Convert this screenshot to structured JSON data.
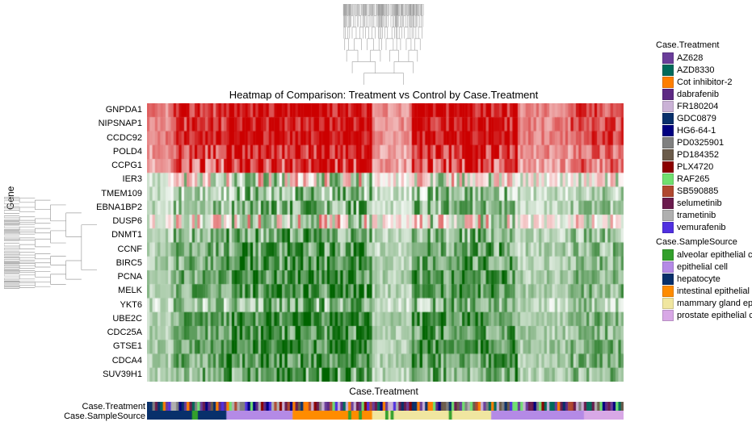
{
  "title": "Heatmap of Comparison: Treatment vs Control by Case.Treatment",
  "y_axis_label": "Gene",
  "x_axis_label": "Case.Treatment",
  "annotation_labels": [
    "Case.Treatment",
    "Case.SampleSource"
  ],
  "genes": [
    "GNPDA1",
    "NIPSNAP1",
    "CCDC92",
    "POLD4",
    "CCPG1",
    "IER3",
    "TMEM109",
    "EBNA1BP2",
    "DUSP6",
    "DNMT1",
    "CCNF",
    "BIRC5",
    "PCNA",
    "MELK",
    "YKT6",
    "UBE2C",
    "CDC25A",
    "GTSE1",
    "CDCA4",
    "SUV39H1"
  ],
  "heatmap": {
    "type": "heatmap",
    "n_rows": 20,
    "n_cols": 180,
    "color_low": "#006400",
    "color_mid": "#ffffff",
    "color_high": "#cc0000",
    "background_color": "#ffffff",
    "grid_color": "#ffffff",
    "row_means": [
      0.8,
      0.78,
      0.82,
      0.7,
      0.62,
      -0.05,
      -0.35,
      -0.4,
      -0.05,
      -0.45,
      -0.5,
      -0.52,
      -0.55,
      -0.55,
      -0.4,
      -0.58,
      -0.55,
      -0.58,
      -0.55,
      -0.5
    ],
    "row_noise": [
      0.32,
      0.3,
      0.3,
      0.35,
      0.4,
      0.55,
      0.35,
      0.32,
      0.55,
      0.35,
      0.35,
      0.32,
      0.32,
      0.32,
      0.35,
      0.3,
      0.32,
      0.3,
      0.32,
      0.35
    ],
    "col_intensity_blocks": [
      {
        "start": 0,
        "end": 10,
        "mult": 0.6
      },
      {
        "start": 10,
        "end": 30,
        "mult": 1.0
      },
      {
        "start": 30,
        "end": 85,
        "mult": 1.3
      },
      {
        "start": 85,
        "end": 100,
        "mult": 0.55
      },
      {
        "start": 100,
        "end": 140,
        "mult": 1.2
      },
      {
        "start": 140,
        "end": 160,
        "mult": 0.6
      },
      {
        "start": 160,
        "end": 180,
        "mult": 0.9
      }
    ]
  },
  "dendrogram_color": "#9f9f9f",
  "dendrogram_stroke_width": 0.6,
  "legends": {
    "treatment": {
      "title": "Case.Treatment",
      "items": [
        {
          "label": "AZ628",
          "color": "#6a3d9a"
        },
        {
          "label": "AZD8330",
          "color": "#006a5a"
        },
        {
          "label": "Cot inhibitor-2",
          "color": "#ff7f00"
        },
        {
          "label": "dabrafenib",
          "color": "#5e2a84"
        },
        {
          "label": "FR180204",
          "color": "#cab2d6"
        },
        {
          "label": "GDC0879",
          "color": "#08306b"
        },
        {
          "label": "HG6-64-1",
          "color": "#000080"
        },
        {
          "label": "PD0325901",
          "color": "#808080"
        },
        {
          "label": "PD184352",
          "color": "#6b5b4a"
        },
        {
          "label": "PLX4720",
          "color": "#8b0000"
        },
        {
          "label": "RAF265",
          "color": "#70e070"
        },
        {
          "label": "SB590885",
          "color": "#b04830"
        },
        {
          "label": "selumetinib",
          "color": "#6a1b4d"
        },
        {
          "label": "trametinib",
          "color": "#b0b0b0"
        },
        {
          "label": "vemurafenib",
          "color": "#5030e0"
        }
      ]
    },
    "samplesource": {
      "title": "Case.SampleSource",
      "items": [
        {
          "label": "alveolar epithelial cell",
          "color": "#33a02c"
        },
        {
          "label": "epithelial cell",
          "color": "#b48ae6"
        },
        {
          "label": "hepatocyte",
          "color": "#08306b"
        },
        {
          "label": "intestinal epithelial cell",
          "color": "#ff8c00"
        },
        {
          "label": "mammary gland epithelial",
          "color": "#f0e6a0"
        },
        {
          "label": "prostate epithelial cell",
          "color": "#d8a8e6"
        }
      ]
    }
  },
  "annotation_tracks": {
    "treatment_cols": 180,
    "samplesource_blocks": [
      {
        "start": 0,
        "end": 30,
        "idx": 2
      },
      {
        "start": 30,
        "end": 55,
        "idx": 1
      },
      {
        "start": 55,
        "end": 85,
        "idx": 3
      },
      {
        "start": 85,
        "end": 130,
        "idx": 4
      },
      {
        "start": 130,
        "end": 165,
        "idx": 1
      },
      {
        "start": 165,
        "end": 180,
        "idx": 5
      }
    ]
  }
}
